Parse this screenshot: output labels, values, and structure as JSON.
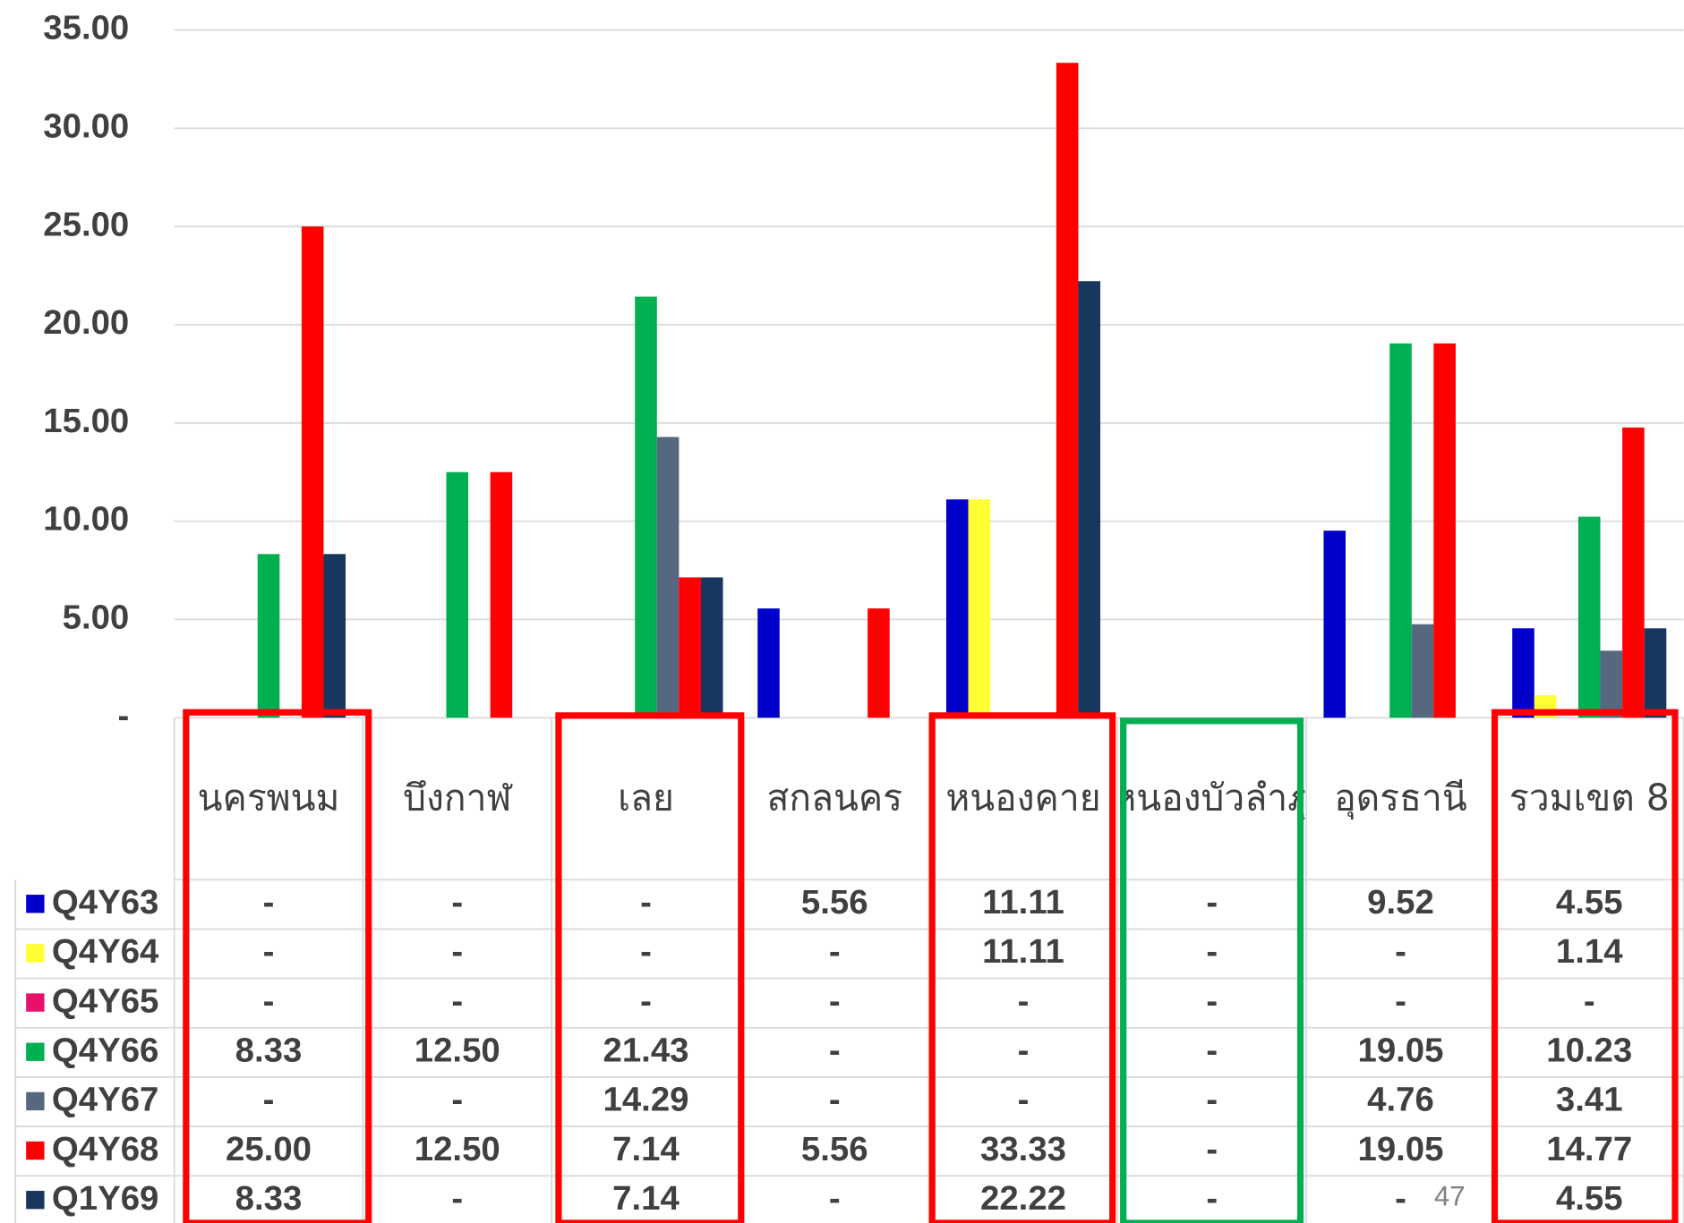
{
  "chart_data": {
    "type": "bar",
    "categories": [
      "นครพนม",
      "บึงกาฬ",
      "เลย",
      "สกลนคร",
      "หนองคาย",
      "หนองบัวลำภู",
      "อุดรธานี",
      "รวมเขต 8"
    ],
    "series": [
      {
        "name": "Q4Y63",
        "color": "#0000cc",
        "values": [
          0,
          0,
          0,
          5.56,
          11.11,
          0,
          9.52,
          4.55
        ],
        "value_labels": [
          "-",
          "-",
          "-",
          "5.56",
          "11.11",
          "-",
          "9.52",
          "4.55"
        ]
      },
      {
        "name": "Q4Y64",
        "color": "#ffff33",
        "values": [
          0,
          0,
          0,
          0,
          11.11,
          0,
          0,
          1.14
        ],
        "value_labels": [
          "-",
          "-",
          "-",
          "-",
          "11.11",
          "-",
          "-",
          "1.14"
        ]
      },
      {
        "name": "Q4Y65",
        "color": "#e8106a",
        "values": [
          0,
          0,
          0,
          0,
          0,
          0,
          0,
          0
        ],
        "value_labels": [
          "-",
          "-",
          "-",
          "-",
          "-",
          "-",
          "-",
          "-"
        ]
      },
      {
        "name": "Q4Y66",
        "color": "#00b050",
        "values": [
          8.33,
          12.5,
          21.43,
          0,
          0,
          0,
          19.05,
          10.23
        ],
        "value_labels": [
          "8.33",
          "12.50",
          "21.43",
          "-",
          "-",
          "-",
          "19.05",
          "10.23"
        ]
      },
      {
        "name": "Q4Y67",
        "color": "#566780",
        "values": [
          0,
          0,
          14.29,
          0,
          0,
          0,
          4.76,
          3.41
        ],
        "value_labels": [
          "-",
          "-",
          "14.29",
          "-",
          "-",
          "-",
          "4.76",
          "3.41"
        ]
      },
      {
        "name": "Q4Y68",
        "color": "#ff0000",
        "values": [
          25,
          12.5,
          7.14,
          5.56,
          33.33,
          0,
          19.05,
          14.77
        ],
        "value_labels": [
          "25.00",
          "12.50",
          "7.14",
          "5.56",
          "33.33",
          "-",
          "19.05",
          "14.77"
        ]
      },
      {
        "name": "Q1Y69",
        "color": "#17375e",
        "values": [
          8.33,
          0,
          7.14,
          0,
          22.22,
          0,
          0,
          4.55
        ],
        "value_labels": [
          "8.33",
          "-",
          "7.14",
          "-",
          "22.22",
          "-",
          "-",
          "4.55"
        ]
      }
    ],
    "ylim": [
      0,
      35
    ],
    "yticks": [
      {
        "value": 0,
        "label": "-"
      },
      {
        "value": 5,
        "label": "5.00"
      },
      {
        "value": 10,
        "label": "10.00"
      },
      {
        "value": 15,
        "label": "15.00"
      },
      {
        "value": 20,
        "label": "20.00"
      },
      {
        "value": 25,
        "label": "25.00"
      },
      {
        "value": 30,
        "label": "30.00"
      },
      {
        "value": 35,
        "label": "35.00"
      }
    ],
    "grid": true
  },
  "page_number": "47"
}
